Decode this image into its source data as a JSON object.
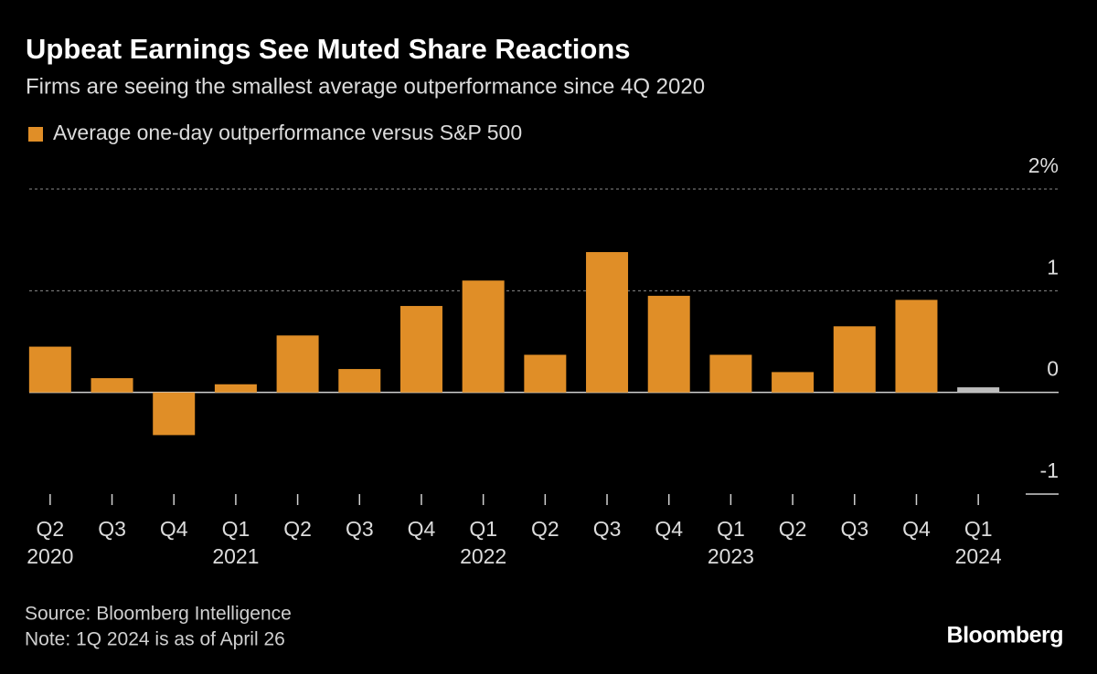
{
  "chart_data": {
    "type": "bar",
    "title": "Upbeat Earnings See Muted Share Reactions",
    "subtitle": "Firms are seeing the smallest average outperformance since 4Q 2020",
    "series_name": "Average one-day outperformance versus S&P 500",
    "color": "#e08e27",
    "categories": [
      "Q2",
      "Q3",
      "Q4",
      "Q1",
      "Q2",
      "Q3",
      "Q4",
      "Q1",
      "Q2",
      "Q3",
      "Q4",
      "Q1",
      "Q2",
      "Q3",
      "Q4",
      "Q1"
    ],
    "years": [
      "2020",
      null,
      null,
      "2021",
      null,
      null,
      null,
      "2022",
      null,
      null,
      null,
      "2023",
      null,
      null,
      null,
      "2024"
    ],
    "values": [
      0.45,
      0.14,
      -0.42,
      0.08,
      0.56,
      0.23,
      0.85,
      1.1,
      0.37,
      1.38,
      0.95,
      0.37,
      0.2,
      0.65,
      0.91,
      0.05
    ],
    "colors": [
      "#e08e27",
      "#e08e27",
      "#e08e27",
      "#e08e27",
      "#e08e27",
      "#e08e27",
      "#e08e27",
      "#e08e27",
      "#e08e27",
      "#e08e27",
      "#e08e27",
      "#e08e27",
      "#e08e27",
      "#e08e27",
      "#e08e27",
      "#bdbdbd"
    ],
    "ylim": [
      -1,
      2
    ],
    "yticks": [
      {
        "value": 2,
        "label": "2%"
      },
      1,
      0,
      -1
    ],
    "grid": true,
    "source": "Source: Bloomberg Intelligence",
    "note": "Note: 1Q 2024 is as of April 26",
    "brand": "Bloomberg"
  }
}
